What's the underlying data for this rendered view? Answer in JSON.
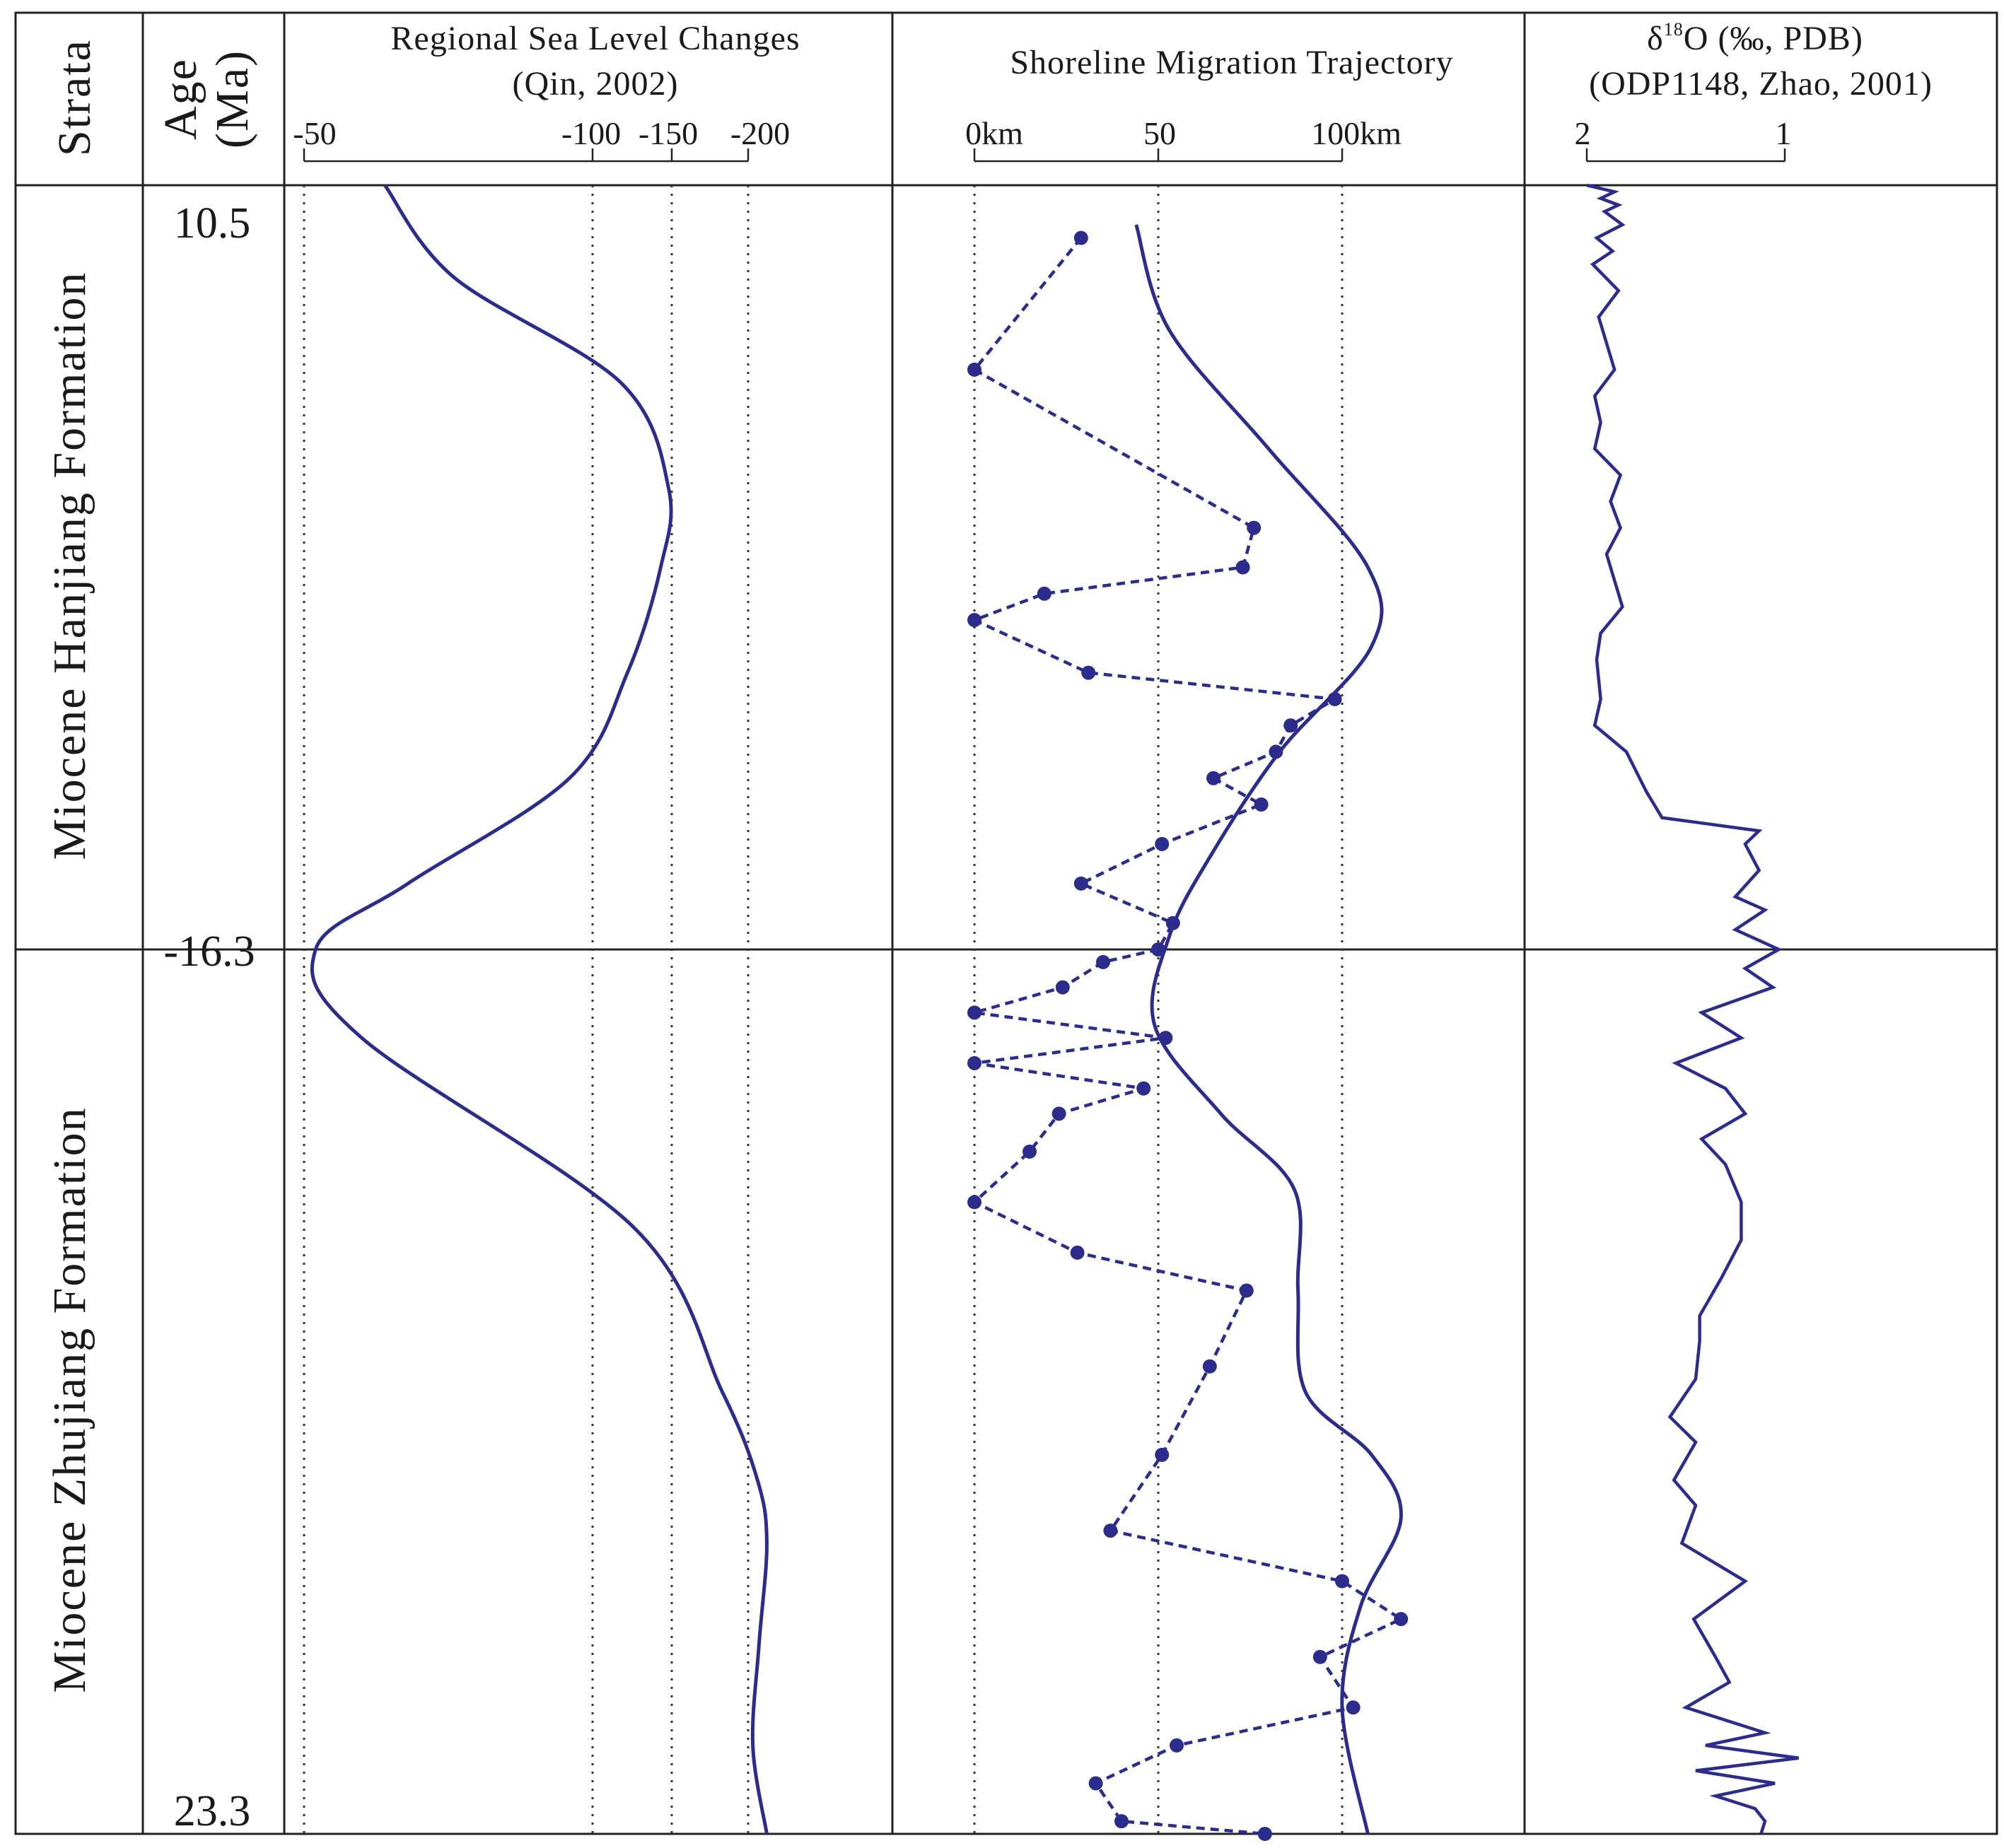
{
  "headers": {
    "strata": "Strata",
    "age_line1": "Age",
    "age_line2": "(Ma)",
    "sea_title_1": "Regional Sea Level Changes",
    "sea_title_2": "(Qin, 2002)",
    "shore_title": "Shoreline Migration Trajectory",
    "iso_title_1_delta": "δ",
    "iso_title_1_sup": "18",
    "iso_title_1_rest": "O (‰,  PDB)",
    "iso_title_2": "(ODP1148, Zhao, 2001)"
  },
  "formations": {
    "upper": "Miocene Hanjiang Formation",
    "lower": "Miocene Zhujiang Formation"
  },
  "ages": {
    "top": "10.5",
    "boundary": "-16.3",
    "bottom": "23.3"
  },
  "colors": {
    "series": "#2b2c8c",
    "frame": "#222222"
  },
  "chart_data": [
    {
      "type": "line",
      "title": "Regional Sea Level Changes (Qin, 2002)",
      "x_ticks": [
        "-50",
        "-100",
        "-150",
        "-200"
      ],
      "y_unit": "Ma",
      "y_range": [
        10.5,
        23.3
      ],
      "orientation": "vertical (depth/age downward)",
      "series": [
        {
          "points": [
            [
              10.5,
              -64
            ],
            [
              11.2,
              -76
            ],
            [
              12.0,
              -118
            ],
            [
              12.8,
              -148
            ],
            [
              13.4,
              -143
            ],
            [
              14.2,
              -122
            ],
            [
              15.0,
              -96
            ],
            [
              15.8,
              -68
            ],
            [
              16.3,
              -52
            ],
            [
              17.0,
              -60
            ],
            [
              18.5,
              -126
            ],
            [
              19.8,
              -183
            ],
            [
              20.5,
              -206
            ],
            [
              21.0,
              -212
            ],
            [
              21.8,
              -207
            ],
            [
              22.6,
              -203
            ],
            [
              23.3,
              -212
            ]
          ]
        }
      ]
    },
    {
      "type": "line",
      "title": "Shoreline Migration Trajectory",
      "x_ticks": [
        "0km",
        "50",
        "100km"
      ],
      "y_range": [
        10.5,
        23.3
      ],
      "series": [
        {
          "style": "solid",
          "points": [
            [
              10.8,
              44
            ],
            [
              11.6,
              53
            ],
            [
              12.5,
              80
            ],
            [
              13.4,
              107
            ],
            [
              14.0,
              108
            ],
            [
              14.8,
              83
            ],
            [
              15.6,
              64
            ],
            [
              16.2,
              53
            ],
            [
              16.9,
              49
            ],
            [
              17.6,
              67
            ],
            [
              18.2,
              87
            ],
            [
              19.0,
              88
            ],
            [
              19.8,
              90
            ],
            [
              20.3,
              108
            ],
            [
              20.8,
              116
            ],
            [
              21.5,
              105
            ],
            [
              22.3,
              100
            ],
            [
              23.3,
              107
            ]
          ]
        },
        {
          "style": "dashed-with-points",
          "points": [
            [
              10.9,
              29
            ],
            [
              11.9,
              0
            ],
            [
              13.1,
              76
            ],
            [
              13.4,
              73
            ],
            [
              13.6,
              19
            ],
            [
              13.8,
              0
            ],
            [
              14.2,
              31
            ],
            [
              14.4,
              98
            ],
            [
              14.6,
              86
            ],
            [
              14.8,
              82
            ],
            [
              15.0,
              65
            ],
            [
              15.2,
              78
            ],
            [
              15.5,
              51
            ],
            [
              15.8,
              29
            ],
            [
              16.1,
              54
            ],
            [
              16.3,
              50
            ],
            [
              16.4,
              35
            ],
            [
              16.6,
              24
            ],
            [
              16.8,
              0
            ],
            [
              17.0,
              52
            ],
            [
              17.2,
              0
            ],
            [
              17.4,
              46
            ],
            [
              17.6,
              23
            ],
            [
              17.9,
              15
            ],
            [
              18.3,
              0
            ],
            [
              18.7,
              28
            ],
            [
              19.0,
              74
            ],
            [
              19.6,
              64
            ],
            [
              20.3,
              51
            ],
            [
              20.9,
              37
            ],
            [
              21.3,
              100
            ],
            [
              21.6,
              116
            ],
            [
              21.9,
              94
            ],
            [
              22.3,
              103
            ],
            [
              22.6,
              55
            ],
            [
              22.9,
              33
            ],
            [
              23.2,
              40
            ],
            [
              23.3,
              79
            ]
          ]
        }
      ]
    },
    {
      "type": "line",
      "title": "δ18O (‰, PDB) (ODP1148, Zhao, 2001)",
      "x_ticks": [
        "2",
        "1"
      ],
      "x_range": [
        2.05,
        0.85
      ],
      "y_range": [
        10.5,
        23.3
      ],
      "series": [
        {
          "points": [
            [
              10.5,
              2.0
            ],
            [
              10.55,
              1.86
            ],
            [
              10.6,
              1.93
            ],
            [
              10.65,
              1.84
            ],
            [
              10.7,
              1.91
            ],
            [
              10.8,
              1.82
            ],
            [
              10.9,
              1.95
            ],
            [
              11.0,
              1.87
            ],
            [
              11.1,
              1.97
            ],
            [
              11.3,
              1.84
            ],
            [
              11.5,
              1.94
            ],
            [
              11.7,
              1.9
            ],
            [
              11.9,
              1.86
            ],
            [
              12.1,
              1.96
            ],
            [
              12.3,
              1.93
            ],
            [
              12.5,
              1.96
            ],
            [
              12.7,
              1.83
            ],
            [
              12.9,
              1.88
            ],
            [
              13.1,
              1.83
            ],
            [
              13.3,
              1.9
            ],
            [
              13.5,
              1.86
            ],
            [
              13.7,
              1.82
            ],
            [
              13.9,
              1.93
            ],
            [
              14.1,
              1.95
            ],
            [
              14.4,
              1.93
            ],
            [
              14.6,
              1.96
            ],
            [
              14.8,
              1.8
            ],
            [
              15.1,
              1.7
            ],
            [
              15.3,
              1.62
            ],
            [
              15.4,
              1.13
            ],
            [
              15.5,
              1.2
            ],
            [
              15.7,
              1.13
            ],
            [
              15.9,
              1.25
            ],
            [
              16.0,
              1.1
            ],
            [
              16.15,
              1.25
            ],
            [
              16.3,
              1.03
            ],
            [
              16.45,
              1.2
            ],
            [
              16.6,
              1.06
            ],
            [
              16.8,
              1.42
            ],
            [
              17.0,
              1.22
            ],
            [
              17.2,
              1.55
            ],
            [
              17.4,
              1.3
            ],
            [
              17.6,
              1.2
            ],
            [
              17.8,
              1.42
            ],
            [
              18.0,
              1.3
            ],
            [
              18.3,
              1.22
            ],
            [
              18.6,
              1.22
            ],
            [
              18.9,
              1.32
            ],
            [
              19.2,
              1.43
            ],
            [
              19.4,
              1.43
            ],
            [
              19.7,
              1.45
            ],
            [
              20.0,
              1.58
            ],
            [
              20.2,
              1.45
            ],
            [
              20.5,
              1.56
            ],
            [
              20.7,
              1.45
            ],
            [
              21.0,
              1.52
            ],
            [
              21.3,
              1.2
            ],
            [
              21.6,
              1.46
            ],
            [
              21.9,
              1.35
            ],
            [
              22.1,
              1.28
            ],
            [
              22.3,
              1.5
            ],
            [
              22.5,
              1.1
            ],
            [
              22.6,
              1.4
            ],
            [
              22.7,
              0.93
            ],
            [
              22.8,
              1.45
            ],
            [
              22.9,
              1.05
            ],
            [
              23.0,
              1.35
            ],
            [
              23.1,
              1.15
            ],
            [
              23.2,
              1.1
            ],
            [
              23.3,
              1.12
            ]
          ]
        }
      ]
    }
  ]
}
